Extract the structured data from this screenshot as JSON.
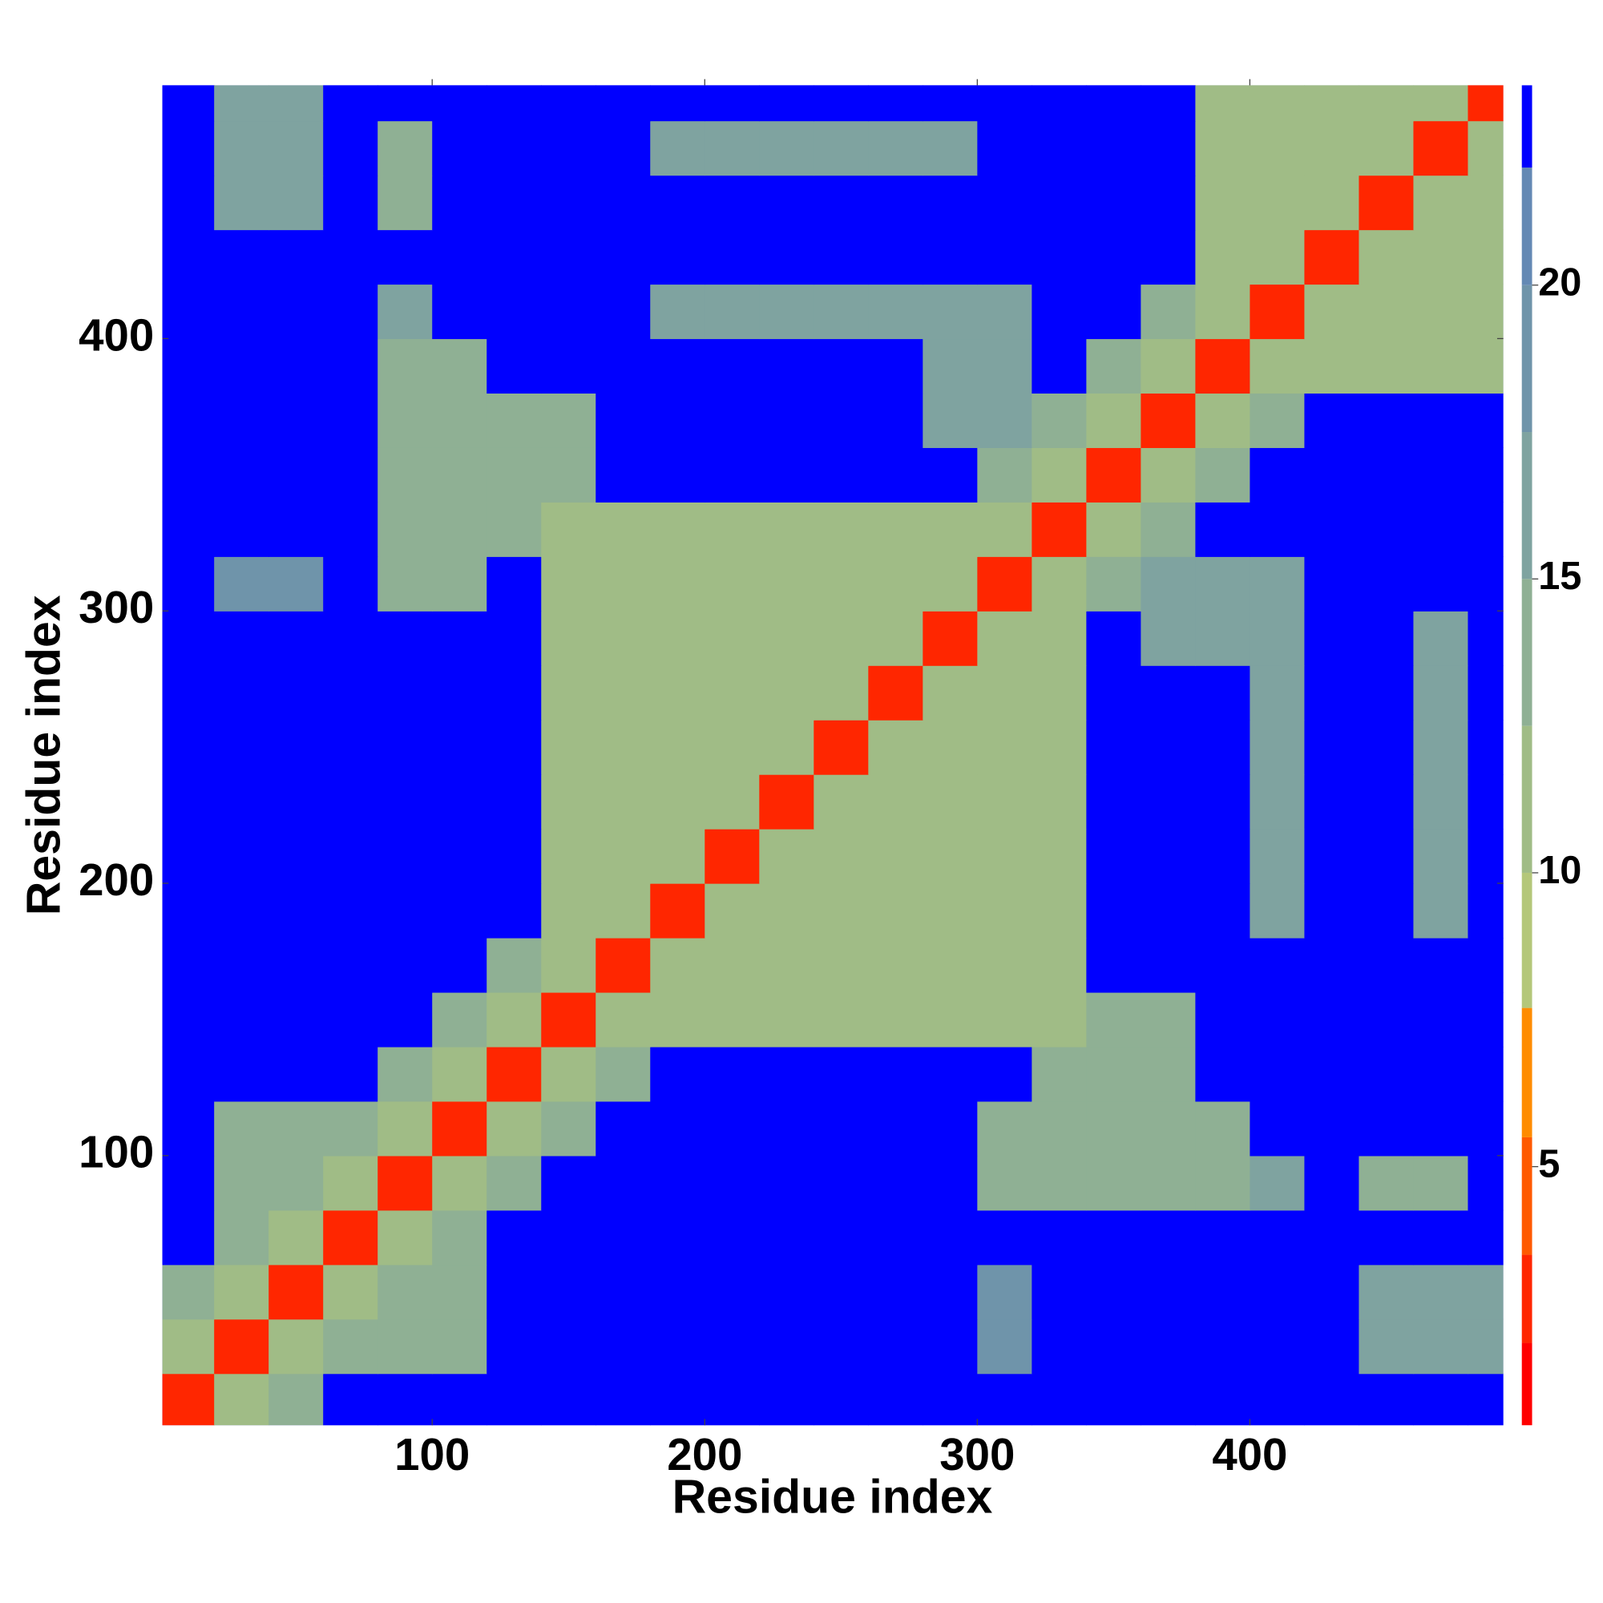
{
  "chart_data": {
    "type": "heatmap",
    "x_label": "Residue index",
    "y_label": "Residue index",
    "x": [
      10,
      30,
      50,
      70,
      90,
      110,
      130,
      150,
      170,
      190,
      210,
      230,
      250,
      270,
      290,
      310,
      330,
      350,
      370,
      390,
      410,
      430,
      450,
      470,
      490
    ],
    "y": [
      10,
      30,
      50,
      70,
      90,
      110,
      130,
      150,
      170,
      190,
      210,
      230,
      250,
      270,
      290,
      310,
      330,
      350,
      370,
      390,
      410,
      430,
      450,
      470,
      490
    ],
    "values": [
      [
        3,
        10,
        14,
        23,
        23,
        23,
        23,
        23,
        23,
        23,
        23,
        23,
        23,
        23,
        23,
        23,
        23,
        23,
        23,
        23,
        23,
        23,
        23,
        23,
        23
      ],
      [
        10,
        3,
        10,
        13,
        13,
        13,
        23,
        23,
        23,
        23,
        23,
        23,
        23,
        23,
        23,
        19,
        23,
        23,
        23,
        23,
        23,
        23,
        15,
        15,
        15
      ],
      [
        14,
        10,
        3,
        10,
        13,
        13,
        23,
        23,
        23,
        23,
        23,
        23,
        23,
        23,
        23,
        19,
        23,
        23,
        23,
        23,
        23,
        23,
        15,
        15,
        15
      ],
      [
        23,
        13,
        10,
        3,
        10,
        14,
        23,
        23,
        23,
        23,
        23,
        23,
        23,
        23,
        23,
        23,
        23,
        23,
        23,
        23,
        23,
        23,
        23,
        23,
        23
      ],
      [
        23,
        13,
        13,
        10,
        3,
        10,
        14,
        23,
        23,
        23,
        23,
        23,
        23,
        23,
        23,
        14,
        14,
        14,
        14,
        14,
        16,
        23,
        14,
        14,
        23
      ],
      [
        23,
        13,
        13,
        14,
        10,
        3,
        10,
        14,
        23,
        23,
        23,
        23,
        23,
        23,
        23,
        14,
        14,
        14,
        14,
        14,
        23,
        23,
        23,
        23,
        23
      ],
      [
        23,
        23,
        23,
        23,
        14,
        10,
        3,
        10,
        14,
        23,
        23,
        23,
        23,
        23,
        23,
        23,
        13,
        13,
        13,
        23,
        23,
        23,
        23,
        23,
        23
      ],
      [
        23,
        23,
        23,
        23,
        23,
        14,
        10,
        3,
        10,
        12,
        12,
        12,
        12,
        12,
        12,
        12,
        12,
        13,
        13,
        23,
        23,
        23,
        23,
        23,
        23
      ],
      [
        23,
        23,
        23,
        23,
        23,
        23,
        14,
        10,
        3,
        10,
        12,
        12,
        12,
        12,
        12,
        12,
        12,
        23,
        23,
        23,
        23,
        23,
        23,
        23,
        23
      ],
      [
        23,
        23,
        23,
        23,
        23,
        23,
        23,
        12,
        10,
        3,
        10,
        12,
        12,
        12,
        12,
        12,
        12,
        23,
        23,
        23,
        16,
        23,
        23,
        17,
        23
      ],
      [
        23,
        23,
        23,
        23,
        23,
        23,
        23,
        12,
        12,
        10,
        3,
        10,
        12,
        12,
        12,
        12,
        12,
        23,
        23,
        23,
        16,
        23,
        23,
        17,
        23
      ],
      [
        23,
        23,
        23,
        23,
        23,
        23,
        23,
        12,
        12,
        12,
        10,
        3,
        10,
        12,
        12,
        12,
        12,
        23,
        23,
        23,
        17,
        23,
        23,
        17,
        23
      ],
      [
        23,
        23,
        23,
        23,
        23,
        23,
        23,
        12,
        12,
        12,
        12,
        10,
        3,
        10,
        12,
        12,
        12,
        23,
        23,
        23,
        16,
        23,
        23,
        17,
        23
      ],
      [
        23,
        23,
        23,
        23,
        23,
        23,
        23,
        12,
        12,
        12,
        12,
        12,
        10,
        3,
        10,
        12,
        12,
        23,
        23,
        23,
        16,
        23,
        23,
        17,
        23
      ],
      [
        23,
        23,
        23,
        23,
        23,
        23,
        23,
        12,
        12,
        12,
        12,
        12,
        12,
        10,
        3,
        10,
        12,
        23,
        15,
        15,
        16,
        23,
        23,
        17,
        23
      ],
      [
        23,
        19,
        19,
        23,
        14,
        14,
        23,
        12,
        12,
        12,
        12,
        12,
        12,
        12,
        10,
        3,
        10,
        14,
        15,
        15,
        16,
        23,
        23,
        23,
        23
      ],
      [
        23,
        23,
        23,
        23,
        14,
        14,
        13,
        12,
        12,
        12,
        12,
        12,
        12,
        12,
        12,
        10,
        3,
        10,
        14,
        23,
        23,
        23,
        23,
        23,
        23
      ],
      [
        23,
        23,
        23,
        23,
        14,
        14,
        13,
        13,
        23,
        23,
        23,
        23,
        23,
        23,
        23,
        14,
        10,
        3,
        10,
        14,
        23,
        23,
        23,
        23,
        23
      ],
      [
        23,
        23,
        23,
        23,
        14,
        14,
        13,
        13,
        23,
        23,
        23,
        23,
        23,
        23,
        15,
        15,
        14,
        10,
        3,
        10,
        14,
        23,
        23,
        23,
        23
      ],
      [
        23,
        23,
        23,
        23,
        14,
        14,
        23,
        23,
        23,
        23,
        23,
        23,
        23,
        23,
        15,
        15,
        23,
        14,
        10,
        3,
        10,
        12,
        12,
        12,
        12
      ],
      [
        23,
        23,
        23,
        23,
        16,
        23,
        23,
        23,
        23,
        16,
        16,
        17,
        16,
        16,
        16,
        16,
        23,
        23,
        14,
        10,
        3,
        10,
        12,
        12,
        12
      ],
      [
        23,
        23,
        23,
        23,
        23,
        23,
        23,
        23,
        23,
        23,
        23,
        23,
        23,
        23,
        23,
        23,
        23,
        23,
        23,
        12,
        10,
        3,
        10,
        12,
        12
      ],
      [
        23,
        15,
        15,
        23,
        14,
        23,
        23,
        23,
        23,
        23,
        23,
        23,
        23,
        23,
        23,
        23,
        23,
        23,
        23,
        12,
        12,
        10,
        3,
        10,
        12
      ],
      [
        23,
        15,
        15,
        23,
        14,
        23,
        23,
        23,
        23,
        17,
        17,
        17,
        17,
        17,
        17,
        23,
        23,
        23,
        23,
        12,
        12,
        12,
        10,
        3,
        10
      ],
      [
        23,
        15,
        15,
        23,
        23,
        23,
        23,
        23,
        23,
        23,
        23,
        23,
        23,
        23,
        23,
        23,
        23,
        23,
        23,
        12,
        12,
        12,
        12,
        10,
        3
      ]
    ],
    "xlim": [
      1,
      493
    ],
    "ylim": [
      1,
      493
    ],
    "xticks": [
      100,
      200,
      300,
      400
    ],
    "yticks": [
      100,
      200,
      300,
      400
    ],
    "zlim": [
      0.6,
      23.4
    ],
    "zticks": [
      5,
      10,
      15,
      20
    ],
    "colorscale": [
      [
        0.6,
        "#ff0000"
      ],
      [
        2,
        "#ff2600"
      ],
      [
        3.5,
        "#ff5a00"
      ],
      [
        5.5,
        "#ff8c00"
      ],
      [
        7.7,
        "#b4c77a"
      ],
      [
        10,
        "#a0bc86"
      ],
      [
        12.5,
        "#8fb094"
      ],
      [
        15,
        "#7fa3a0"
      ],
      [
        17.5,
        "#6f94aa"
      ],
      [
        20,
        "#6489b4"
      ],
      [
        22,
        "#0000ff"
      ]
    ]
  }
}
